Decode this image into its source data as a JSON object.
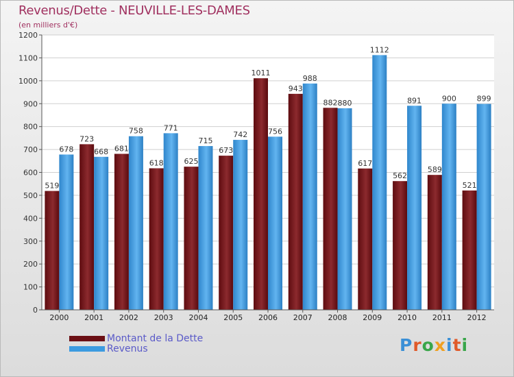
{
  "title": "Revenus/Dette - NEUVILLE-LES-DAMES",
  "subtitle": "(en milliers d'€)",
  "logo": {
    "text": "Proxiti",
    "letters": [
      {
        "ch": "P",
        "color": "#3a8fd6"
      },
      {
        "ch": "r",
        "color": "#e05a2a"
      },
      {
        "ch": "o",
        "color": "#3aa64a"
      },
      {
        "ch": "x",
        "color": "#f0a020"
      },
      {
        "ch": "i",
        "color": "#3a8fd6"
      },
      {
        "ch": "t",
        "color": "#e05a2a"
      },
      {
        "ch": "i",
        "color": "#3aa64a"
      }
    ]
  },
  "legend": [
    {
      "label": "Montant de la Dette",
      "color": "#6b0f14"
    },
    {
      "label": "Revenus",
      "color": "#3c9be0"
    }
  ],
  "chart_data": {
    "type": "bar",
    "title": "Revenus/Dette - NEUVILLE-LES-DAMES",
    "subtitle": "(en milliers d'€)",
    "categories": [
      "2000",
      "2001",
      "2002",
      "2003",
      "2004",
      "2005",
      "2006",
      "2007",
      "2008",
      "2009",
      "2010",
      "2011",
      "2012"
    ],
    "series": [
      {
        "name": "Montant de la Dette",
        "color": "#7a1a1e",
        "values": [
          519,
          723,
          681,
          618,
          625,
          673,
          1011,
          943,
          882,
          617,
          562,
          589,
          521
        ]
      },
      {
        "name": "Revenus",
        "color": "#3c9be0",
        "values": [
          678,
          668,
          758,
          771,
          715,
          742,
          756,
          988,
          880,
          1112,
          891,
          900,
          899
        ]
      }
    ],
    "ylim": [
      0,
      1200
    ],
    "yticks": [
      0,
      100,
      200,
      300,
      400,
      500,
      600,
      700,
      800,
      900,
      1000,
      1100,
      1200
    ],
    "grid": true,
    "legend_position": "bottom-left"
  }
}
